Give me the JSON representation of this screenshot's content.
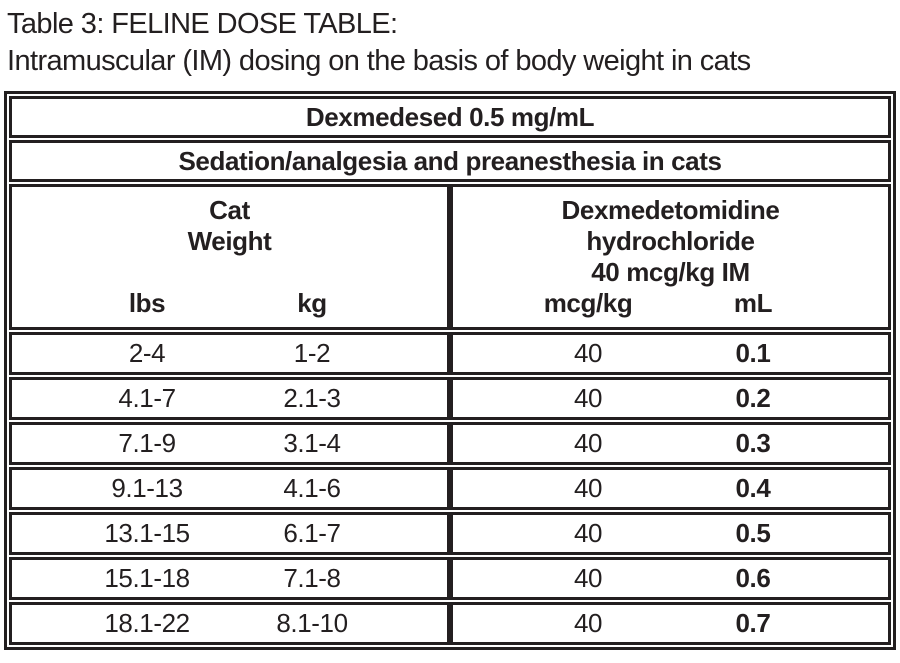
{
  "title": {
    "line1": "Table 3: FELINE DOSE TABLE:",
    "line2": "Intramuscular (IM) dosing on the basis of body weight in cats"
  },
  "table": {
    "product_header": "Dexmedesed 0.5 mg/mL",
    "indication_header": "Sedation/analgesia and preanesthesia in cats",
    "left_group": {
      "label_lines": [
        "Cat",
        "Weight"
      ],
      "subcolumns": [
        "lbs",
        "kg"
      ]
    },
    "right_group": {
      "label_lines": [
        "Dexmedetomidine",
        "hydrochloride",
        "40 mcg/kg IM"
      ],
      "subcolumns": [
        "mcg/kg",
        "mL"
      ]
    },
    "rows": [
      {
        "lbs": "2-4",
        "kg": "1-2",
        "mcg_per_kg": "40",
        "ml": "0.1"
      },
      {
        "lbs": "4.1-7",
        "kg": "2.1-3",
        "mcg_per_kg": "40",
        "ml": "0.2"
      },
      {
        "lbs": "7.1-9",
        "kg": "3.1-4",
        "mcg_per_kg": "40",
        "ml": "0.3"
      },
      {
        "lbs": "9.1-13",
        "kg": "4.1-6",
        "mcg_per_kg": "40",
        "ml": "0.4"
      },
      {
        "lbs": "13.1-15",
        "kg": "6.1-7",
        "mcg_per_kg": "40",
        "ml": "0.5"
      },
      {
        "lbs": "15.1-18",
        "kg": "7.1-8",
        "mcg_per_kg": "40",
        "ml": "0.6"
      },
      {
        "lbs": "18.1-22",
        "kg": "8.1-10",
        "mcg_per_kg": "40",
        "ml": "0.7"
      }
    ]
  },
  "colors": {
    "text": "#231f20",
    "border": "#231f20",
    "background": "#ffffff"
  }
}
